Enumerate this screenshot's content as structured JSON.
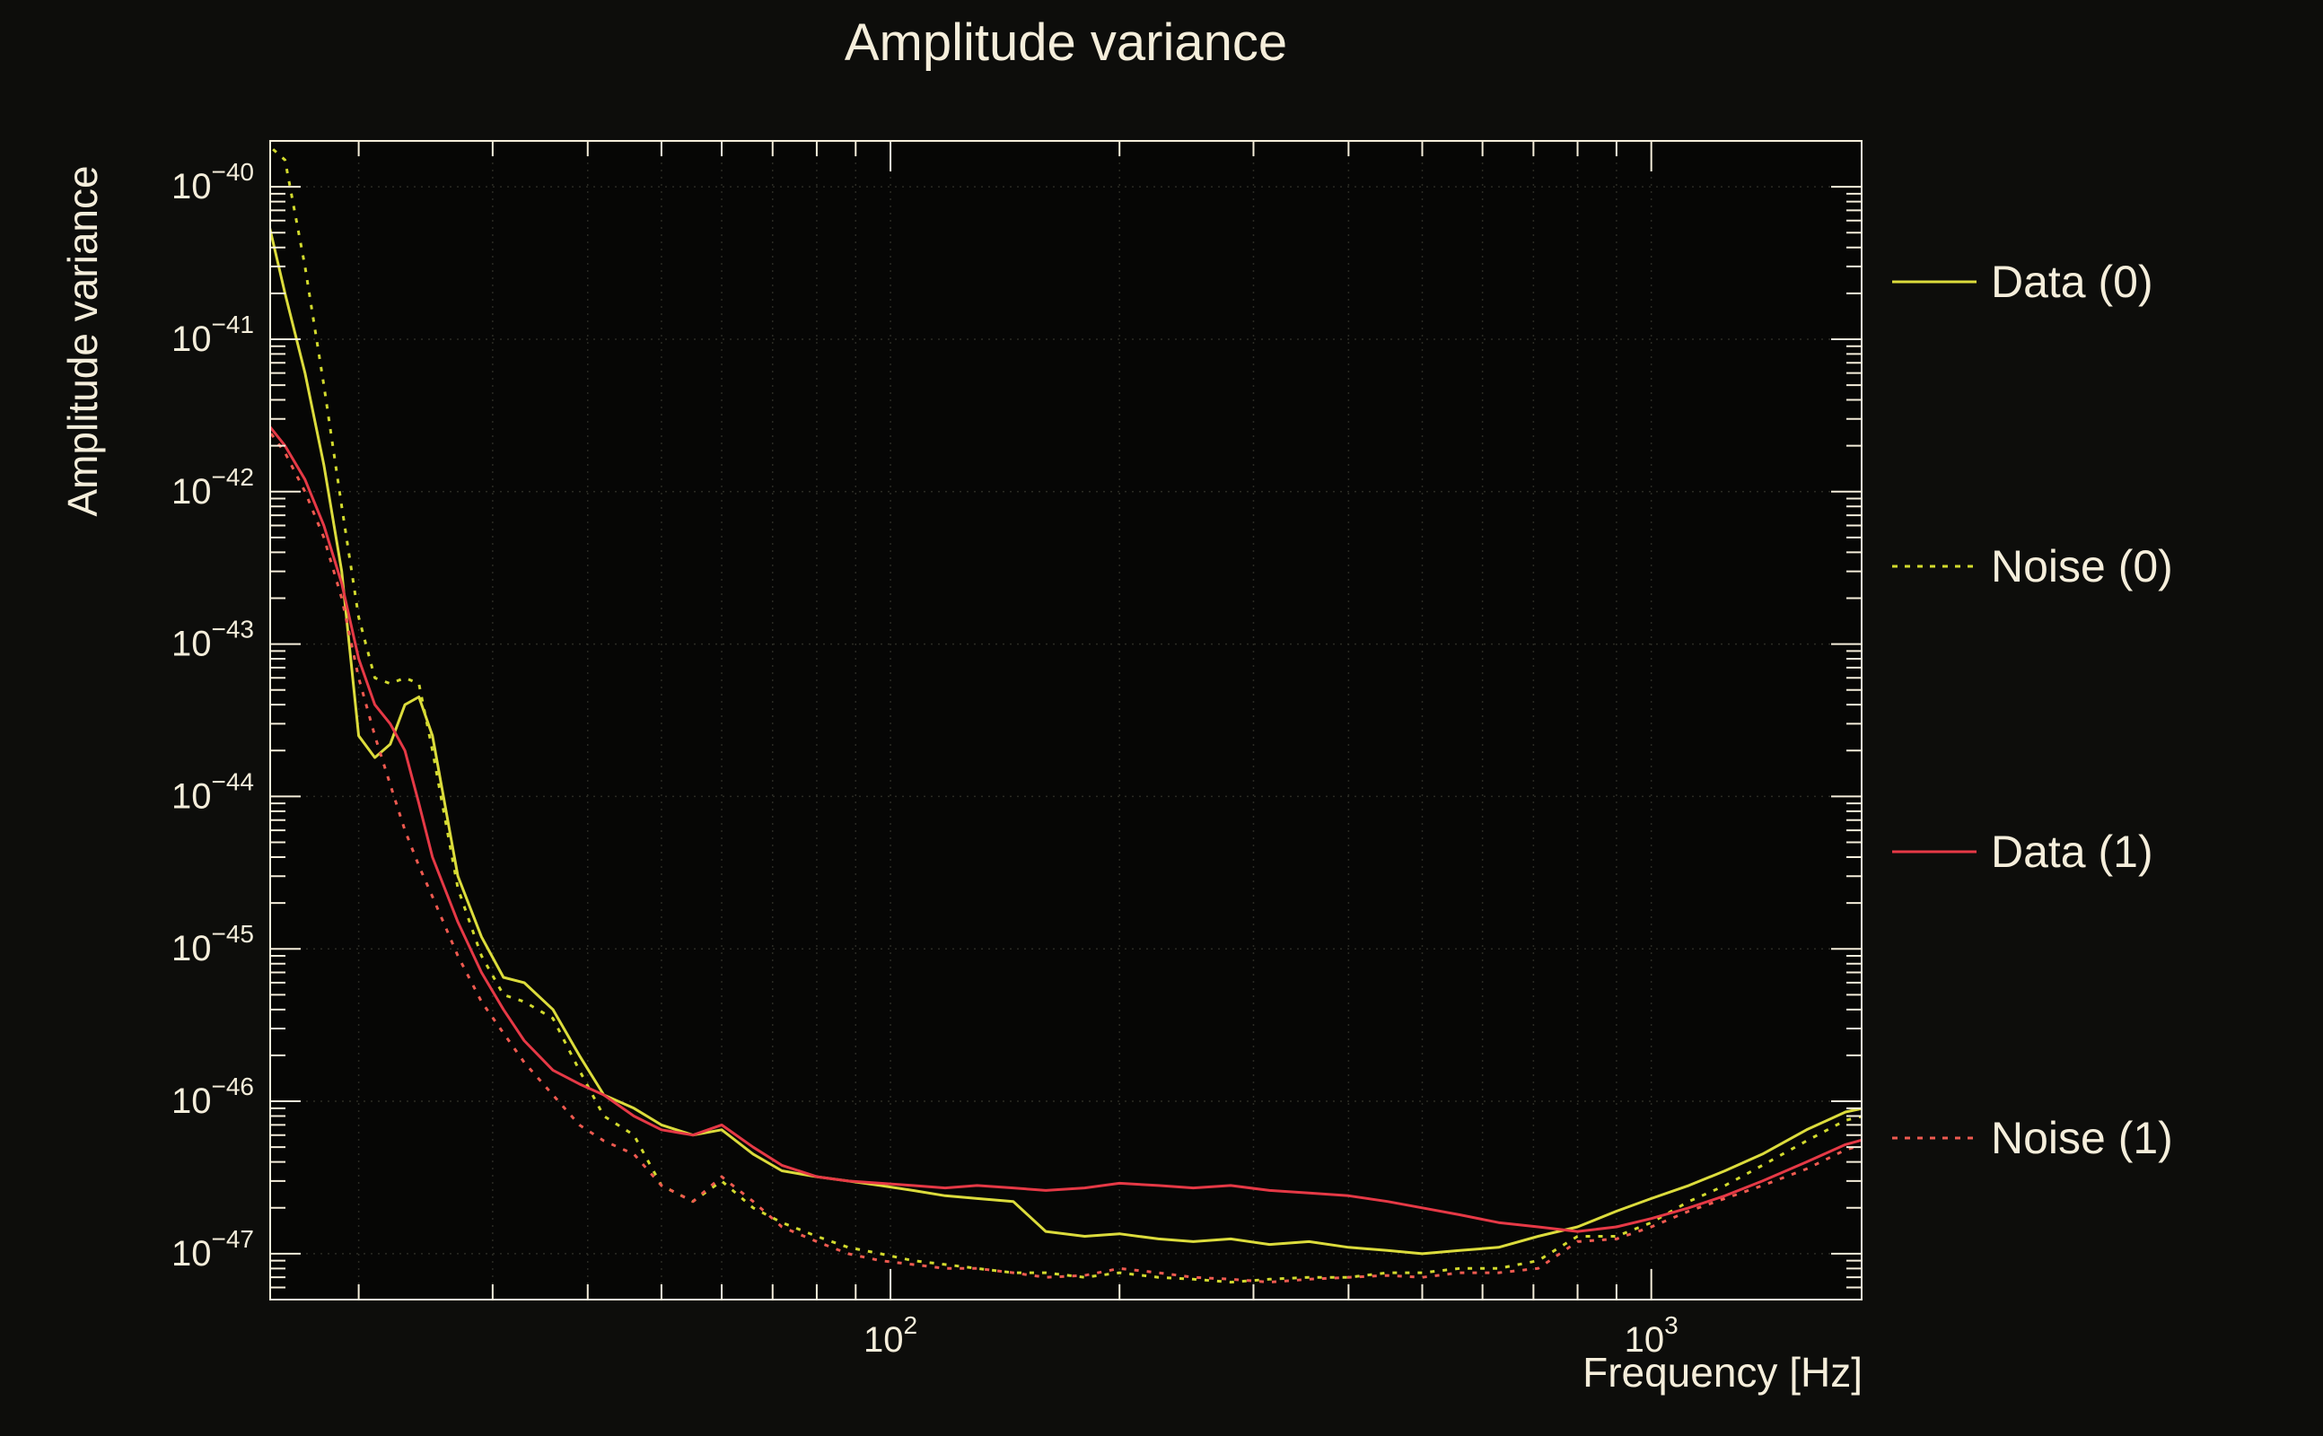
{
  "colors": {
    "background": "#0d0d0b",
    "foreground": "#f5eedb",
    "grid": "#2b2b24",
    "plot_fill": "#060605"
  },
  "chart_data": {
    "type": "line",
    "title": "Amplitude variance",
    "xlabel": "Frequency [Hz]",
    "ylabel": "Amplitude variance",
    "xscale": "log",
    "yscale": "log",
    "xlim": [
      15.3,
      1890
    ],
    "ylim": [
      5e-48,
      2e-40
    ],
    "x_tick_exponents": [
      2,
      3
    ],
    "y_tick_exponents": [
      -40,
      -41,
      -42,
      -43,
      -44,
      -45,
      -46,
      -47
    ],
    "grid": true,
    "legend_position": "right",
    "x": [
      15,
      16,
      17,
      18,
      19,
      20,
      21,
      22,
      23,
      24,
      25,
      27,
      29,
      31,
      33,
      36,
      39,
      42,
      46,
      50,
      55,
      60,
      66,
      72,
      80,
      88,
      97,
      107,
      118,
      130,
      145,
      160,
      180,
      200,
      225,
      250,
      280,
      315,
      355,
      400,
      450,
      500,
      560,
      630,
      710,
      800,
      900,
      1000,
      1120,
      1250,
      1400,
      1600,
      1800,
      1900
    ],
    "series": [
      {
        "name": "Data (0)",
        "color": "#dcdc3c",
        "style": "solid",
        "values": [
          8e-41,
          2e-41,
          6e-42,
          1.5e-42,
          3e-43,
          2.5e-44,
          1.8e-44,
          2.2e-44,
          4e-44,
          4.5e-44,
          2.5e-44,
          3e-45,
          1.2e-45,
          6.5e-46,
          6e-46,
          4e-46,
          2e-46,
          1.1e-46,
          9e-47,
          7e-47,
          6e-47,
          6.5e-47,
          4.5e-47,
          3.5e-47,
          3.2e-47,
          3e-47,
          2.8e-47,
          2.6e-47,
          2.4e-47,
          2.3e-47,
          2.2e-47,
          1.4e-47,
          1.3e-47,
          1.35e-47,
          1.25e-47,
          1.2e-47,
          1.25e-47,
          1.15e-47,
          1.2e-47,
          1.1e-47,
          1.05e-47,
          1e-47,
          1.05e-47,
          1.1e-47,
          1.3e-47,
          1.5e-47,
          1.9e-47,
          2.3e-47,
          2.8e-47,
          3.5e-47,
          4.5e-47,
          6.5e-47,
          8.5e-47,
          9e-47
        ]
      },
      {
        "name": "Noise (0)",
        "color": "#d2da2e",
        "style": "dashed",
        "values": [
          2e-40,
          1.5e-40,
          3e-41,
          5e-42,
          8e-43,
          1.5e-43,
          6e-44,
          5.5e-44,
          6e-44,
          5.5e-44,
          2e-44,
          2.5e-45,
          9e-46,
          5e-46,
          4.5e-46,
          3.5e-46,
          1.6e-46,
          8e-47,
          6e-47,
          2.8e-47,
          2.2e-47,
          3e-47,
          2e-47,
          1.6e-47,
          1.3e-47,
          1.1e-47,
          1e-47,
          9e-48,
          8.5e-48,
          8e-48,
          7.5e-48,
          7.5e-48,
          7e-48,
          7.5e-48,
          7e-48,
          6.8e-48,
          6.5e-48,
          6.8e-48,
          7e-48,
          7e-48,
          7.5e-48,
          7.5e-48,
          8e-48,
          8e-48,
          9e-48,
          1.3e-47,
          1.3e-47,
          1.6e-47,
          2.2e-47,
          2.8e-47,
          3.8e-47,
          5.5e-47,
          7.5e-47,
          8e-47
        ]
      },
      {
        "name": "Data (1)",
        "color": "#e63946",
        "style": "solid",
        "values": [
          3e-42,
          2e-42,
          1.2e-42,
          6e-43,
          2.5e-43,
          8e-44,
          4e-44,
          3e-44,
          2e-44,
          9e-45,
          4e-45,
          1.5e-45,
          7e-46,
          4e-46,
          2.5e-46,
          1.6e-46,
          1.3e-46,
          1.1e-46,
          8e-47,
          6.5e-47,
          6e-47,
          7e-47,
          5e-47,
          3.8e-47,
          3.2e-47,
          3e-47,
          2.9e-47,
          2.8e-47,
          2.7e-47,
          2.8e-47,
          2.7e-47,
          2.6e-47,
          2.7e-47,
          2.9e-47,
          2.8e-47,
          2.7e-47,
          2.8e-47,
          2.6e-47,
          2.5e-47,
          2.4e-47,
          2.2e-47,
          2e-47,
          1.8e-47,
          1.6e-47,
          1.5e-47,
          1.4e-47,
          1.5e-47,
          1.7e-47,
          2e-47,
          2.4e-47,
          3e-47,
          4e-47,
          5.2e-47,
          5.6e-47
        ]
      },
      {
        "name": "Noise (1)",
        "color": "#ef5a50",
        "style": "dashed",
        "values": [
          2.8e-42,
          1.8e-42,
          1e-42,
          5e-43,
          2e-43,
          6e-44,
          2.5e-44,
          1.2e-44,
          6e-45,
          3.5e-45,
          2.2e-45,
          9e-46,
          4.5e-46,
          2.8e-46,
          1.8e-46,
          1.1e-46,
          7e-47,
          5.5e-47,
          4.5e-47,
          2.8e-47,
          2.2e-47,
          3.2e-47,
          2.2e-47,
          1.5e-47,
          1.2e-47,
          1e-47,
          9e-48,
          8.5e-48,
          8e-48,
          8e-48,
          7.5e-48,
          7e-48,
          7.2e-48,
          8e-48,
          7.5e-48,
          7e-48,
          6.8e-48,
          6.5e-48,
          6.8e-48,
          7e-48,
          7.2e-48,
          7e-48,
          7.5e-48,
          7.5e-48,
          8e-48,
          1.2e-47,
          1.25e-47,
          1.5e-47,
          1.9e-47,
          2.3e-47,
          2.8e-47,
          3.6e-47,
          4.8e-47,
          5.2e-47
        ]
      }
    ]
  }
}
